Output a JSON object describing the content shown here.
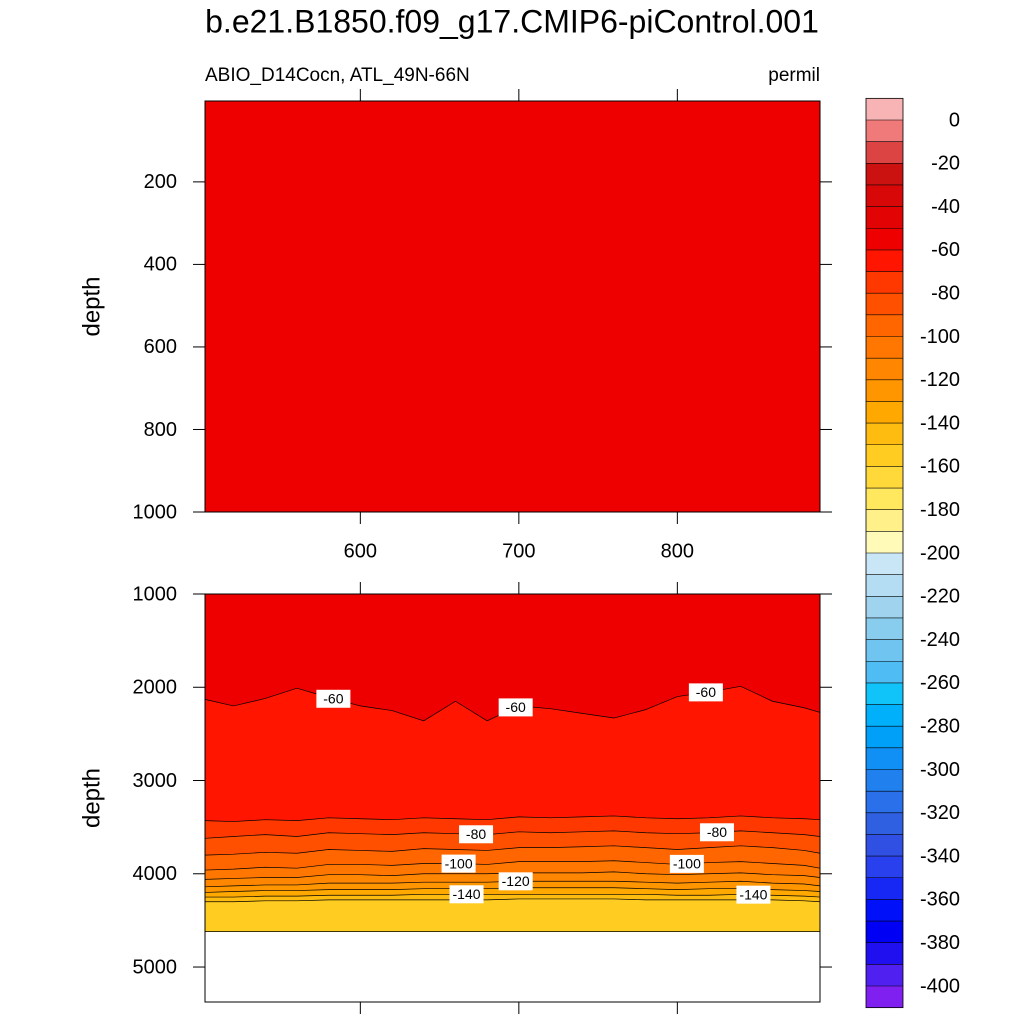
{
  "chart_data": {
    "type": "contour",
    "title": "b.e21.B1850.f09_g17.CMIP6-piControl.001",
    "subtitle_left": "ABIO_D14Cocn, ATL_49N-66N",
    "subtitle_right": "permil",
    "panels": [
      {
        "ylabel": "depth",
        "xlim": [
          502,
          890
        ],
        "xticks": [
          600,
          700,
          800
        ],
        "show_xtick_labels": true,
        "ylim": [
          4,
          1000
        ],
        "yticks": [
          200,
          400,
          600,
          800,
          1000
        ],
        "field_value": -55
      },
      {
        "ylabel": "depth",
        "xlim": [
          502,
          890
        ],
        "xticks": [
          600,
          700,
          800
        ],
        "show_xtick_labels": false,
        "ylim": [
          1000,
          5375
        ],
        "yticks": [
          1000,
          2000,
          3000,
          4000,
          5000
        ],
        "data_max_depth": 4620,
        "x": [
          502,
          520,
          540,
          560,
          580,
          600,
          620,
          640,
          660,
          680,
          700,
          720,
          740,
          760,
          780,
          800,
          820,
          840,
          860,
          880,
          890
        ],
        "contours": [
          {
            "level": -60,
            "depths": [
              2130,
              2200,
              2120,
              2010,
              2110,
              2200,
              2250,
              2360,
              2150,
              2360,
              2200,
              2230,
              2280,
              2330,
              2240,
              2100,
              2050,
              1990,
              2150,
              2220,
              2270
            ]
          },
          {
            "level": -70,
            "depths": [
              3430,
              3440,
              3420,
              3430,
              3400,
              3410,
              3420,
              3400,
              3410,
              3420,
              3390,
              3400,
              3390,
              3380,
              3400,
              3410,
              3400,
              3380,
              3400,
              3410,
              3420
            ]
          },
          {
            "level": -80,
            "depths": [
              3620,
              3600,
              3580,
              3600,
              3560,
              3570,
              3580,
              3560,
              3570,
              3580,
              3550,
              3560,
              3550,
              3540,
              3560,
              3570,
              3560,
              3540,
              3560,
              3580,
              3600
            ]
          },
          {
            "level": -90,
            "depths": [
              3800,
              3790,
              3770,
              3780,
              3740,
              3750,
              3760,
              3730,
              3740,
              3750,
              3720,
              3720,
              3710,
              3700,
              3720,
              3740,
              3720,
              3700,
              3720,
              3750,
              3780
            ]
          },
          {
            "level": -100,
            "depths": [
              3960,
              3950,
              3930,
              3940,
              3900,
              3900,
              3910,
              3890,
              3890,
              3900,
              3870,
              3870,
              3870,
              3860,
              3880,
              3900,
              3880,
              3870,
              3890,
              3910,
              3940
            ]
          },
          {
            "level": -110,
            "depths": [
              4060,
              4050,
              4040,
              4040,
              4010,
              4010,
              4020,
              4000,
              4000,
              4000,
              3990,
              3990,
              3990,
              3980,
              4000,
              4010,
              4000,
              3990,
              4010,
              4020,
              4040
            ]
          },
          {
            "level": -120,
            "depths": [
              4140,
              4130,
              4120,
              4120,
              4100,
              4100,
              4100,
              4090,
              4090,
              4090,
              4080,
              4080,
              4080,
              4080,
              4090,
              4100,
              4090,
              4080,
              4100,
              4110,
              4130
            ]
          },
          {
            "level": -130,
            "depths": [
              4200,
              4190,
              4180,
              4180,
              4170,
              4170,
              4170,
              4160,
              4160,
              4160,
              4150,
              4150,
              4150,
              4150,
              4160,
              4170,
              4160,
              4160,
              4170,
              4180,
              4190
            ]
          },
          {
            "level": -140,
            "depths": [
              4250,
              4250,
              4240,
              4240,
              4230,
              4230,
              4230,
              4220,
              4220,
              4220,
              4220,
              4220,
              4220,
              4220,
              4220,
              4230,
              4230,
              4220,
              4230,
              4240,
              4250
            ]
          },
          {
            "level": -150,
            "depths": [
              4300,
              4300,
              4290,
              4290,
              4280,
              4280,
              4280,
              4280,
              4280,
              4280,
              4270,
              4270,
              4270,
              4270,
              4280,
              4280,
              4280,
              4280,
              4280,
              4290,
              4300
            ]
          }
        ]
      }
    ],
    "colorbar": {
      "levels": [
        0,
        -10,
        -20,
        -30,
        -40,
        -50,
        -60,
        -70,
        -80,
        -90,
        -100,
        -110,
        -120,
        -130,
        -140,
        -150,
        -160,
        -170,
        -180,
        -190,
        -200,
        -210,
        -220,
        -230,
        -240,
        -250,
        -260,
        -270,
        -280,
        -290,
        -300,
        -310,
        -320,
        -330,
        -340,
        -350,
        -360,
        -370,
        -380,
        -390,
        -400
      ],
      "colors": [
        "#f8b4b4",
        "#f07a7a",
        "#dc4444",
        "#cc1111",
        "#d80808",
        "#e20404",
        "#ee0000",
        "#ff1500",
        "#ff3800",
        "#ff5000",
        "#ff6600",
        "#ff7600",
        "#ff8600",
        "#ff9600",
        "#ffa800",
        "#ffbc10",
        "#ffcc22",
        "#ffd83a",
        "#ffe85e",
        "#fff08a",
        "#fffab8",
        "#c8e6f6",
        "#b4dcf2",
        "#a0d4ee",
        "#88ccee",
        "#70c4f0",
        "#50bcf4",
        "#10c4fa",
        "#00b0fa",
        "#00a0f8",
        "#1090f4",
        "#2080ee",
        "#2a70ea",
        "#3060e2",
        "#3050e4",
        "#2840ee",
        "#1828f4",
        "#0010f8",
        "#0000f4",
        "#2010f0",
        "#5020f0",
        "#8020f0"
      ],
      "ticks": [
        0,
        -20,
        -40,
        -60,
        -80,
        -100,
        -120,
        -140,
        -160,
        -180,
        -200,
        -220,
        -240,
        -260,
        -280,
        -300,
        -320,
        -340,
        -360,
        -380,
        -400
      ]
    }
  }
}
